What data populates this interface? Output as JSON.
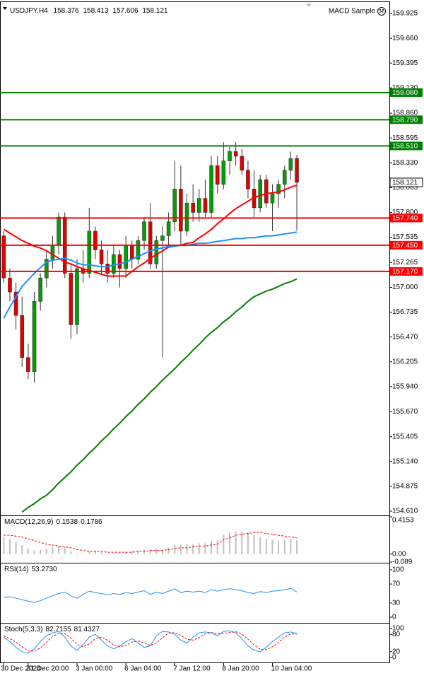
{
  "chart_data": [
    {
      "type": "candlestick",
      "title": "USDJPY,H4",
      "expert": "MACD Sample",
      "categories": [
        "30 Dec 2024",
        null,
        null,
        null,
        "31 Dec 20:00",
        null,
        null,
        null,
        null,
        null,
        null,
        null,
        "3 Jan 00:00",
        null,
        null,
        null,
        null,
        null,
        null,
        null,
        "6 Jan 04:00",
        null,
        null,
        null,
        null,
        null,
        null,
        null,
        "7 Jan 12:00",
        null,
        null,
        null,
        null,
        null,
        null,
        null,
        "8 Jan 20:00",
        null,
        null,
        null,
        null,
        null,
        null,
        null,
        "10 Jan 04:00",
        null,
        null,
        null,
        null
      ],
      "open": [
        157.55,
        157.1,
        156.95,
        156.7,
        156.25,
        156.1,
        156.85,
        157.1,
        157.3,
        157.45,
        157.75,
        157.15,
        156.6,
        157.2,
        157.15,
        157.6,
        157.4,
        157.25,
        157.15,
        157.35,
        157.2,
        157.45,
        157.3,
        157.5,
        157.7,
        157.25,
        157.5,
        157.55,
        157.7,
        158.05,
        157.6,
        157.9,
        157.8,
        157.95,
        157.8,
        158.3,
        158.1,
        158.35,
        158.45,
        158.4,
        158.25,
        158.05,
        157.85,
        158.15,
        157.9,
        158.0,
        158.1,
        158.25,
        158.376
      ],
      "high": [
        157.6,
        157.2,
        157.05,
        156.9,
        156.4,
        156.95,
        157.15,
        157.4,
        157.55,
        157.8,
        157.8,
        157.25,
        157.3,
        157.4,
        157.85,
        157.65,
        157.5,
        157.4,
        157.45,
        157.4,
        157.55,
        157.5,
        157.55,
        157.75,
        157.9,
        157.55,
        157.65,
        157.8,
        158.35,
        158.3,
        158.0,
        158.1,
        158.05,
        158.15,
        158.4,
        158.4,
        158.55,
        158.5,
        158.55,
        158.48,
        158.35,
        158.25,
        158.2,
        158.2,
        158.1,
        158.15,
        158.3,
        158.45,
        158.413
      ],
      "low": [
        157.05,
        156.85,
        156.55,
        156.15,
        156.02,
        155.98,
        156.75,
        157.0,
        157.2,
        157.35,
        157.1,
        156.45,
        156.5,
        157.05,
        157.1,
        157.3,
        157.15,
        157.05,
        157.1,
        157.0,
        157.1,
        157.2,
        157.25,
        157.4,
        157.2,
        157.2,
        156.25,
        157.45,
        157.6,
        157.45,
        157.55,
        157.7,
        157.7,
        157.75,
        157.75,
        158.0,
        158.05,
        158.2,
        158.3,
        158.2,
        157.95,
        157.75,
        157.8,
        157.85,
        157.6,
        157.85,
        157.95,
        158.15,
        157.606
      ],
      "close": [
        157.1,
        156.95,
        156.7,
        156.25,
        156.1,
        156.85,
        157.1,
        157.3,
        157.45,
        157.75,
        157.15,
        156.6,
        157.2,
        157.15,
        157.6,
        157.4,
        157.25,
        157.15,
        157.35,
        157.2,
        157.45,
        157.3,
        157.5,
        157.7,
        157.25,
        157.5,
        157.55,
        157.7,
        158.05,
        157.6,
        157.9,
        157.8,
        157.95,
        157.8,
        158.3,
        158.1,
        158.35,
        158.45,
        158.4,
        158.25,
        158.05,
        157.85,
        158.15,
        157.9,
        158.0,
        158.1,
        158.25,
        158.376,
        158.121
      ],
      "up_color": "#00a000",
      "down_color": "#e00000",
      "ylim": [
        154.572,
        160.046
      ],
      "yticks": [
        159.925,
        {
          "value": 159.66,
          "label": "159.660"
        },
        159.395,
        {
          "value": 159.13,
          "label": "159.130"
        },
        {
          "value": 158.86,
          "label": "158.860"
        },
        158.595,
        {
          "value": 158.33,
          "label": "158.330"
        },
        158.065,
        {
          "value": 157.8,
          "label": "157.800"
        },
        157.535,
        157.265,
        {
          "value": 157,
          "label": "157.000"
        },
        156.735,
        {
          "value": 156.47,
          "label": "156.470"
        },
        156.205,
        {
          "value": 155.94,
          "label": "155.940"
        },
        {
          "value": 155.67,
          "label": "155.670"
        },
        155.405,
        {
          "value": 155.14,
          "label": "155.140"
        },
        154.875,
        {
          "value": 154.61,
          "label": "154.610"
        }
      ],
      "overlays": [
        {
          "color": "#ff0000",
          "values": [
            157.62,
            157.58,
            157.54,
            157.5,
            157.47,
            157.44,
            157.42,
            157.39,
            157.35,
            157.31,
            157.27,
            157.25,
            157.22,
            157.2,
            157.18,
            157.16,
            157.14,
            157.12,
            157.12,
            157.12,
            157.12,
            157.17,
            157.22,
            157.26,
            157.31,
            157.35,
            157.39,
            157.43,
            157.44,
            157.45,
            157.47,
            157.48,
            157.53,
            157.57,
            157.62,
            157.68,
            157.73,
            157.79,
            157.84,
            157.88,
            157.92,
            157.96,
            157.98,
            158.0,
            158.01,
            158.02,
            158.04,
            158.07,
            158.09
          ]
        },
        {
          "color": "#1e90ff",
          "values": [
            156.67,
            156.79,
            156.9,
            157.01,
            157.08,
            157.15,
            157.21,
            157.27,
            157.29,
            157.3,
            157.31,
            157.29,
            157.26,
            157.24,
            157.24,
            157.23,
            157.22,
            157.22,
            157.24,
            157.25,
            157.27,
            157.3,
            157.33,
            157.36,
            157.39,
            157.41,
            157.42,
            157.44,
            157.44,
            157.45,
            157.45,
            157.46,
            157.47,
            157.47,
            157.48,
            157.49,
            157.5,
            157.51,
            157.52,
            157.52,
            157.53,
            157.53,
            157.54,
            157.55,
            157.55,
            157.56,
            157.57,
            157.58,
            157.59
          ]
        },
        {
          "color": "#008000",
          "values": [
            null,
            null,
            null,
            154.6,
            154.65,
            154.69,
            154.74,
            154.78,
            154.84,
            154.91,
            154.97,
            155.03,
            155.1,
            155.16,
            155.23,
            155.29,
            155.36,
            155.42,
            155.49,
            155.55,
            155.62,
            155.68,
            155.75,
            155.81,
            155.88,
            155.94,
            156.01,
            156.07,
            156.13,
            156.2,
            156.26,
            156.33,
            156.39,
            156.46,
            156.52,
            156.57,
            156.63,
            156.68,
            156.74,
            156.79,
            156.85,
            156.9,
            156.93,
            156.96,
            156.98,
            157.01,
            157.04,
            157.06,
            157.09
          ]
        }
      ],
      "levels": [
        {
          "value": 159.08,
          "label": "159.080",
          "color": "#008000"
        },
        {
          "value": 158.79,
          "label": "158.790",
          "color": "#008000"
        },
        {
          "value": 158.51,
          "label": "158.510",
          "color": "#008000"
        },
        {
          "value": 157.74,
          "label": "157.740",
          "color": "#ff0000"
        },
        {
          "value": 157.45,
          "label": "157.450",
          "color": "#ff0000"
        },
        {
          "value": 157.17,
          "label": "157.170",
          "color": "#ff0000"
        }
      ]
    },
    {
      "type": "combo",
      "title": "MACD(12,26,9)",
      "ylim": [
        -0.089,
        0.4153
      ],
      "yticks": [
        0.4153,
        {
          "value": 0,
          "label": "0.00"
        },
        {
          "value": -0.089,
          "label": "-0.089"
        }
      ],
      "series": [
        {
          "kind": "bar",
          "color": "#c0c0c0",
          "values": [
            0.19,
            0.17,
            0.14,
            0.1,
            0.06,
            0.04,
            0.05,
            0.06,
            0.08,
            0.09,
            0.08,
            0.03,
            0.01,
            0.01,
            0.03,
            0.03,
            0.02,
            0.01,
            0.01,
            0.01,
            0.02,
            0.03,
            0.04,
            0.05,
            0.05,
            0.06,
            0.05,
            0.07,
            0.1,
            0.1,
            0.11,
            0.11,
            0.12,
            0.12,
            0.15,
            0.16,
            0.22,
            0.24,
            0.25,
            0.25,
            0.24,
            0.21,
            0.19,
            0.17,
            0.16,
            0.15,
            0.16,
            0.17,
            0.1538
          ]
        },
        {
          "kind": "line",
          "color": "#ff0000",
          "dashed": true,
          "values": [
            0.21,
            0.21,
            0.2,
            0.19,
            0.17,
            0.15,
            0.13,
            0.11,
            0.1,
            0.09,
            0.08,
            0.07,
            0.05,
            0.04,
            0.03,
            0.03,
            0.03,
            0.02,
            0.02,
            0.02,
            0.02,
            0.02,
            0.03,
            0.03,
            0.04,
            0.04,
            0.04,
            0.05,
            0.06,
            0.07,
            0.07,
            0.08,
            0.09,
            0.09,
            0.1,
            0.11,
            0.16,
            0.18,
            0.21,
            0.22,
            0.23,
            0.24,
            0.24,
            0.23,
            0.22,
            0.21,
            0.2,
            0.19,
            0.1786
          ]
        }
      ]
    },
    {
      "type": "line",
      "title": "RSI(14)",
      "ylim": [
        0,
        100
      ],
      "yticks": [
        100,
        70,
        30,
        0
      ],
      "series": [
        {
          "color": "#1e90ff",
          "values": [
            42,
            43,
            40,
            37,
            34,
            31,
            35,
            40,
            45,
            50,
            53,
            45,
            40,
            48,
            55,
            52,
            50,
            47,
            50,
            48,
            52,
            50,
            53,
            56,
            48,
            53,
            50,
            55,
            60,
            52,
            55,
            53,
            55,
            52,
            58,
            55,
            58,
            60,
            58,
            56,
            52,
            50,
            54,
            52,
            55,
            56,
            58,
            61,
            53.273
          ],
          "value_labels": [
            null,
            null,
            null,
            null,
            null,
            null,
            null,
            null,
            null,
            null,
            null,
            null,
            null,
            null,
            null,
            null,
            null,
            null,
            null,
            null,
            null,
            null,
            null,
            null,
            null,
            null,
            null,
            null,
            null,
            null,
            null,
            null,
            null,
            null,
            null,
            null,
            null,
            null,
            null,
            null,
            null,
            null,
            null,
            null,
            null,
            null,
            null,
            null,
            "53.2730"
          ]
        }
      ]
    },
    {
      "type": "line",
      "title": "Stoch(5,3,3)",
      "ylim": [
        0,
        100
      ],
      "yticks": [
        100,
        80,
        20,
        0
      ],
      "series": [
        {
          "color": "#1e90ff",
          "values": [
            70,
            55,
            35,
            20,
            15,
            30,
            55,
            75,
            85,
            90,
            70,
            40,
            25,
            45,
            70,
            80,
            60,
            40,
            30,
            40,
            55,
            65,
            50,
            35,
            40,
            75,
            90,
            88,
            80,
            60,
            50,
            70,
            85,
            88,
            85,
            75,
            90,
            92,
            85,
            65,
            40,
            25,
            20,
            35,
            55,
            70,
            85,
            88,
            82.7155
          ]
        },
        {
          "color": "#ff0000",
          "dashed": true,
          "values": [
            75,
            65,
            53,
            37,
            23,
            22,
            33,
            53,
            72,
            83,
            82,
            67,
            45,
            37,
            47,
            65,
            70,
            60,
            43,
            37,
            42,
            53,
            57,
            50,
            42,
            50,
            68,
            84,
            86,
            76,
            63,
            60,
            68,
            81,
            86,
            83,
            83,
            86,
            89,
            81,
            63,
            43,
            28,
            27,
            37,
            53,
            70,
            81,
            81.4327
          ]
        }
      ]
    }
  ]
}
